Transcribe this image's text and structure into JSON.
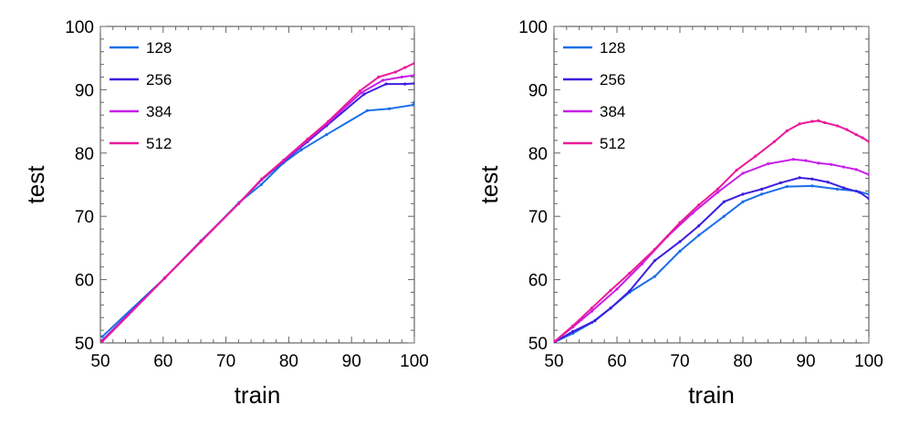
{
  "chart_data": [
    {
      "type": "line",
      "xlabel": "train",
      "ylabel": "test",
      "xlim": [
        50,
        100
      ],
      "ylim": [
        50,
        100
      ],
      "xticks": [
        50,
        60,
        70,
        80,
        90,
        100
      ],
      "yticks": [
        50,
        60,
        70,
        80,
        90,
        100
      ],
      "legend_position": "top-left",
      "grid": false,
      "series": [
        {
          "name": "128",
          "color": "#1a6fe8",
          "x": [
            50.3,
            60.2,
            66.0,
            72.1,
            75.6,
            79.1,
            82.0,
            86.0,
            92.5,
            96.0,
            99.8,
            100.0
          ],
          "y": [
            51.0,
            60.2,
            66.0,
            72.2,
            75.0,
            78.4,
            80.5,
            82.9,
            86.7,
            87.0,
            87.6,
            88.0
          ]
        },
        {
          "name": "256",
          "color": "#3b1ee0",
          "x": [
            50.3,
            60.3,
            66.0,
            72.0,
            75.7,
            79.2,
            83.0,
            86.0,
            92.0,
            95.5,
            98.5,
            100.0
          ],
          "y": [
            50.4,
            60.3,
            66.1,
            72.0,
            75.8,
            78.7,
            81.8,
            84.3,
            89.3,
            90.9,
            90.9,
            91.0
          ]
        },
        {
          "name": "384",
          "color": "#c81ee8",
          "x": [
            50.3,
            60.3,
            66.0,
            72.0,
            75.7,
            79.2,
            83.0,
            86.3,
            91.5,
            95.0,
            98.0,
            100.0
          ],
          "y": [
            50.3,
            60.3,
            66.0,
            72.0,
            75.9,
            78.8,
            82.0,
            84.8,
            89.5,
            91.5,
            92.0,
            92.3
          ]
        },
        {
          "name": "512",
          "color": "#ec1a9a",
          "x": [
            50.3,
            60.3,
            66.0,
            72.0,
            75.7,
            79.2,
            83.0,
            86.3,
            91.3,
            94.3,
            97.0,
            98.5,
            100.0
          ],
          "y": [
            50.2,
            60.3,
            66.0,
            72.0,
            75.9,
            78.9,
            82.2,
            85.0,
            89.8,
            92.0,
            92.8,
            93.5,
            94.2
          ]
        }
      ]
    },
    {
      "type": "line",
      "xlabel": "train",
      "ylabel": "test",
      "xlim": [
        50,
        100
      ],
      "ylim": [
        50,
        100
      ],
      "xticks": [
        50,
        60,
        70,
        80,
        90,
        100
      ],
      "yticks": [
        50,
        60,
        70,
        80,
        90,
        100
      ],
      "legend_position": "top-left",
      "grid": false,
      "series": [
        {
          "name": "128",
          "color": "#1a6fe8",
          "x": [
            50.2,
            53.0,
            56.0,
            59.0,
            62.0,
            66.0,
            70.0,
            73.0,
            77.0,
            80.0,
            83.0,
            87.0,
            91.0,
            95.0,
            98.0,
            100.0
          ],
          "y": [
            50.2,
            51.5,
            53.2,
            55.5,
            58.0,
            60.5,
            64.5,
            67.0,
            70.0,
            72.3,
            73.5,
            74.7,
            74.8,
            74.3,
            74.0,
            73.5
          ]
        },
        {
          "name": "256",
          "color": "#3b1ee0",
          "x": [
            50.2,
            53.0,
            56.5,
            59.0,
            62.0,
            66.0,
            70.0,
            73.0,
            77.0,
            80.0,
            83.0,
            86.0,
            89.0,
            91.0,
            93.5,
            96.0,
            98.5,
            100.0
          ],
          "y": [
            50.2,
            51.8,
            53.5,
            55.5,
            58.2,
            63.0,
            66.0,
            68.5,
            72.3,
            73.5,
            74.3,
            75.3,
            76.1,
            75.9,
            75.4,
            74.5,
            73.8,
            72.8
          ]
        },
        {
          "name": "384",
          "color": "#c81ee8",
          "x": [
            50.2,
            53.0,
            56.0,
            60.0,
            64.0,
            68.0,
            72.0,
            76.0,
            80.0,
            84.0,
            88.0,
            90.0,
            92.0,
            94.0,
            96.0,
            98.0,
            100.0
          ],
          "y": [
            50.3,
            52.5,
            55.0,
            58.5,
            62.5,
            66.8,
            70.5,
            73.8,
            76.8,
            78.3,
            79.0,
            78.8,
            78.4,
            78.2,
            77.8,
            77.4,
            76.6
          ]
        },
        {
          "name": "512",
          "color": "#ec1a9a",
          "x": [
            50.2,
            53.0,
            56.0,
            59.0,
            62.0,
            66.0,
            70.0,
            73.0,
            76.0,
            79.0,
            82.0,
            85.0,
            87.0,
            89.0,
            91.0,
            92.0,
            93.0,
            95.0,
            96.5,
            98.0,
            99.0,
            100.0
          ],
          "y": [
            50.3,
            52.7,
            55.5,
            58.3,
            61.0,
            64.8,
            69.0,
            71.8,
            74.3,
            77.3,
            79.5,
            81.8,
            83.5,
            84.6,
            85.0,
            85.1,
            84.8,
            84.3,
            83.7,
            82.9,
            82.4,
            81.8
          ]
        }
      ]
    }
  ]
}
